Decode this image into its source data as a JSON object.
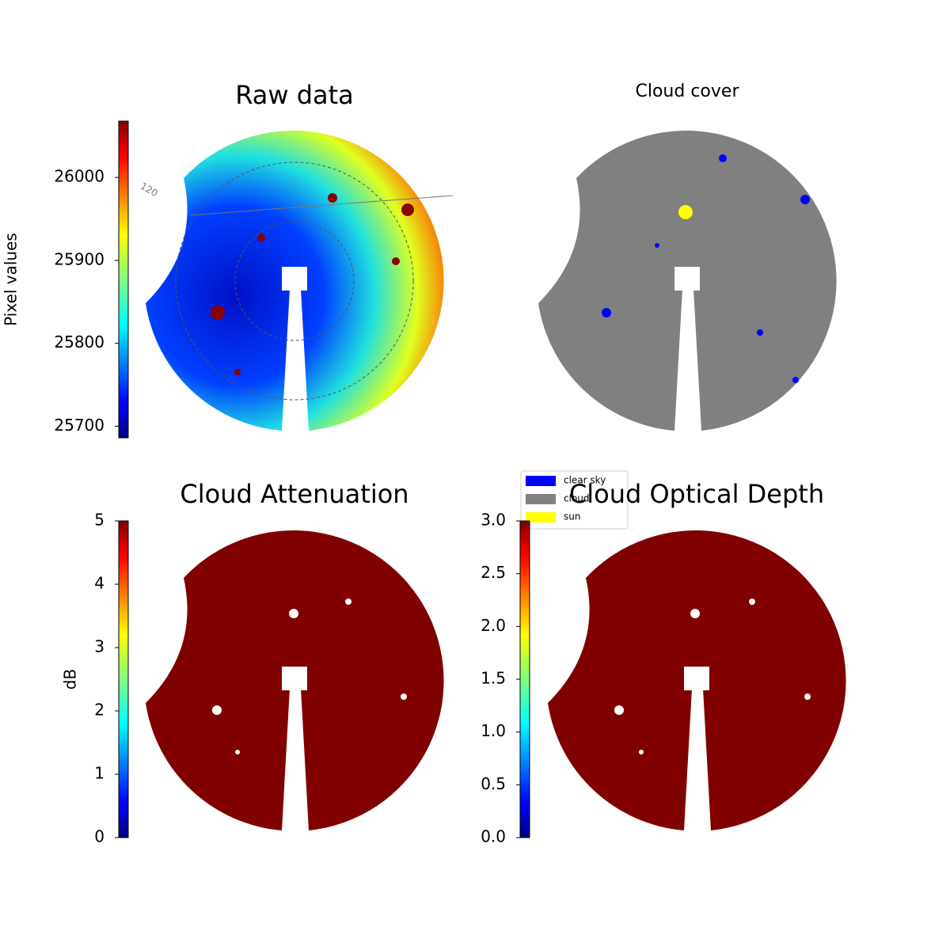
{
  "chart_data": [
    {
      "type": "heatmap",
      "title": "Raw data",
      "annotation": "120",
      "colorbar": {
        "label": "Pixel values",
        "lim": [
          25686,
          26068
        ],
        "ticks": [
          25700,
          25800,
          25900,
          26000
        ]
      }
    },
    {
      "type": "classmap",
      "title": "Cloud cover",
      "legend": [
        {
          "name": "clear sky",
          "color": "#0000ff"
        },
        {
          "name": "cloud",
          "color": "#808080"
        },
        {
          "name": "sun",
          "color": "#ffff00"
        }
      ]
    },
    {
      "type": "heatmap",
      "title": "Cloud Attenuation",
      "colorbar": {
        "label": "dB",
        "lim": [
          0,
          5
        ],
        "ticks": [
          0,
          1,
          2,
          3,
          4,
          5
        ]
      }
    },
    {
      "type": "heatmap",
      "title": "Cloud Optical Depth",
      "colorbar": {
        "lim": [
          0,
          3.0
        ],
        "ticks": [
          {
            "value": 0,
            "label": "0.0"
          },
          {
            "value": 0.5,
            "label": "0.5"
          },
          {
            "value": 1,
            "label": "1.0"
          },
          {
            "value": 1.5,
            "label": "1.5"
          },
          {
            "value": 2,
            "label": "2.0"
          },
          {
            "value": 2.5,
            "label": "2.5"
          },
          {
            "value": 3,
            "label": "3.0"
          }
        ]
      }
    }
  ]
}
